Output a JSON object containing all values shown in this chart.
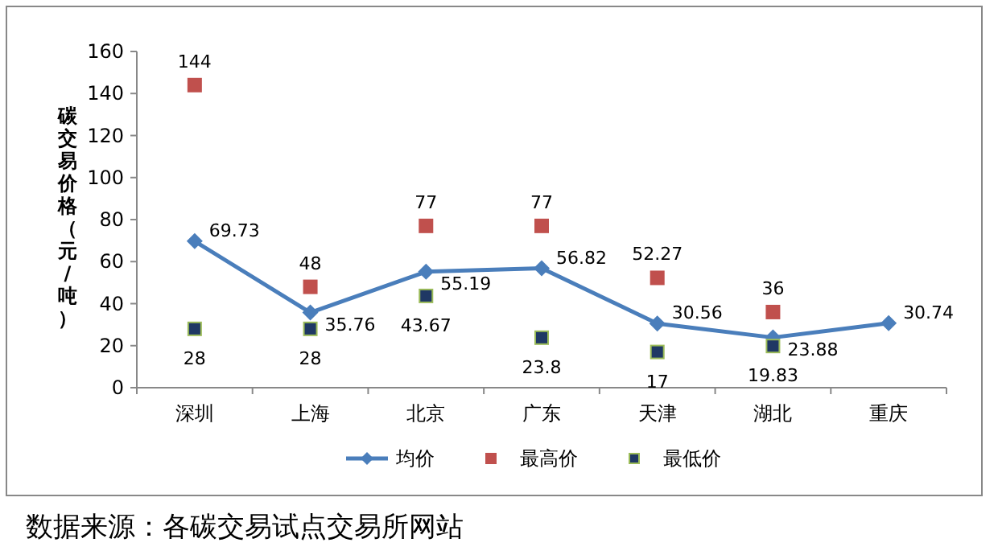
{
  "chart_data": {
    "type": "line",
    "ylabel": "碳交易价格（元/吨）",
    "categories": [
      "深圳",
      "上海",
      "北京",
      "广东",
      "天津",
      "湖北",
      "重庆"
    ],
    "series": [
      {
        "name": "均价",
        "type": "line",
        "color": "#4a7ebb",
        "marker": "diamond",
        "values": [
          69.73,
          35.76,
          55.19,
          56.82,
          30.56,
          23.88,
          30.74
        ]
      },
      {
        "name": "最高价",
        "type": "scatter",
        "color": "#c0504d",
        "marker": "square",
        "values": [
          144,
          48,
          77,
          77,
          52.27,
          36,
          null
        ]
      },
      {
        "name": "最低价",
        "type": "scatter",
        "color": "#1f3864",
        "marker": "square",
        "values": [
          28,
          28,
          43.67,
          23.8,
          17,
          19.83,
          null
        ]
      }
    ],
    "ylim": [
      0,
      160
    ],
    "yticks": [
      0,
      20,
      40,
      60,
      80,
      100,
      120,
      140,
      160
    ],
    "grid": false,
    "legend": "bottom",
    "data_labels": true,
    "annotations": [
      "数据来源：各碳交易试点交易所网站"
    ]
  }
}
